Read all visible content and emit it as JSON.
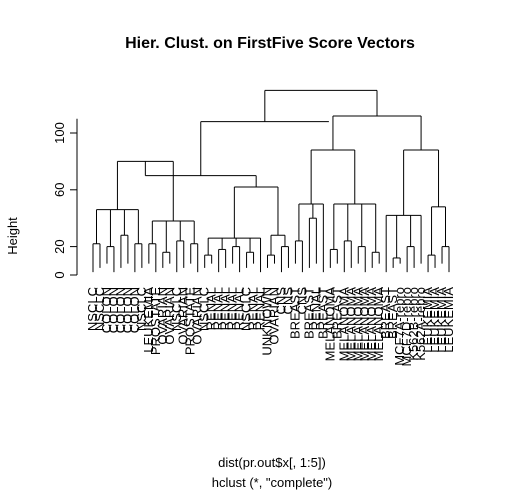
{
  "chart_data": {
    "type": "dendrogram",
    "title": "Hier. Clust. on FirstFive Score Vectors",
    "ylabel": "Height",
    "xlabel": "dist(pr.out$x[, 1:5])",
    "sublabel": "hclust (*, \"complete\")",
    "yticks": [
      0,
      20,
      60,
      100
    ],
    "ylim": [
      0,
      130
    ],
    "leaves": [
      "NSCLC",
      "NSCLC",
      "COLON",
      "COLON",
      "COLON",
      "COLON",
      "COLON",
      "NSCLC",
      "LEUKEMIA",
      "PROSTATE",
      "OVARIAN",
      "OVARIAN",
      "NSCLC",
      "OVARIAN",
      "PROSTATE",
      "OVARIAN",
      "NSCLC",
      "RENAL",
      "RENAL",
      "RENAL",
      "RENAL",
      "RENAL",
      "NSCLC",
      "RENAL",
      "RENAL",
      "UNKNOWN",
      "OVARIAN",
      "CNS",
      "CNS",
      "BREAST",
      "CNS",
      "BREAST",
      "RENAL",
      "BREAST",
      "MELANOMA",
      "BREAST",
      "MELANOMA",
      "MELANOMA",
      "MELANOMA",
      "MELANOMA",
      "MELANOMA",
      "MELANOMA",
      "BREAST",
      "BREAST",
      "MCF7A-repro",
      "MCF7D-repro",
      "K562B-repro",
      "K562A-repro",
      "LEUKEMIA",
      "LEUKEMIA",
      "LEUKEMIA",
      "LEUKEMIA"
    ],
    "merges": [
      {
        "left": 0,
        "right": 1,
        "height": 22
      },
      {
        "left": 2,
        "right": 3,
        "height": 20
      },
      {
        "left": 4,
        "right": 5,
        "height": 28
      },
      {
        "left": 6,
        "right": 7,
        "height": 22
      },
      {
        "left": 8,
        "right": 9,
        "height": 22
      },
      {
        "left": 10,
        "right": 11,
        "height": 16
      },
      {
        "left": 12,
        "right": 13,
        "height": 24
      },
      {
        "left": 14,
        "right": 15,
        "height": 22
      },
      {
        "left": 16,
        "right": 17,
        "height": 14
      },
      {
        "left": 18,
        "right": 19,
        "height": 18
      },
      {
        "left": 20,
        "right": 21,
        "height": 20
      },
      {
        "left": 22,
        "right": 23,
        "height": 16
      },
      {
        "left": 25,
        "right": 26,
        "height": 14
      },
      {
        "left": 27,
        "right": 28,
        "height": 20
      },
      {
        "left": 29,
        "right": 30,
        "height": 24
      },
      {
        "left": 31,
        "right": 32,
        "height": 40
      },
      {
        "left": 34,
        "right": 35,
        "height": 18
      },
      {
        "left": 36,
        "right": 37,
        "height": 24
      },
      {
        "left": 38,
        "right": 39,
        "height": 20
      },
      {
        "left": 40,
        "right": 41,
        "height": 16
      },
      {
        "left": 43,
        "right": 44,
        "height": 12
      },
      {
        "left": 45,
        "right": 46,
        "height": 20
      },
      {
        "left": 48,
        "right": 49,
        "height": 14
      },
      {
        "left": 50,
        "right": 51,
        "height": 20
      }
    ],
    "groups": [
      {
        "leaves": [
          0,
          1,
          2,
          3,
          4,
          5,
          6,
          7
        ],
        "height": 46
      },
      {
        "leaves": [
          8,
          9,
          10,
          11,
          12,
          13,
          14,
          15
        ],
        "height": 38
      },
      {
        "leaves": [
          16,
          17,
          18,
          19,
          20,
          21,
          22,
          23,
          24
        ],
        "height": 26
      },
      {
        "leaves": [
          25,
          26,
          27,
          28
        ],
        "height": 28
      },
      {
        "leaves": [
          29,
          30,
          31,
          32,
          33
        ],
        "height": 50
      },
      {
        "leaves": [
          34,
          35,
          36,
          37,
          38,
          39,
          40,
          41
        ],
        "height": 50
      },
      {
        "leaves": [
          42,
          43,
          44,
          45,
          46,
          47
        ],
        "height": 42
      },
      {
        "leaves": [
          48,
          49,
          50,
          51
        ],
        "height": 48
      }
    ],
    "upper": [
      {
        "groups": [
          0,
          1
        ],
        "height": 80
      },
      {
        "groups": [
          2,
          3
        ],
        "height": 62
      },
      {
        "groups": [
          4,
          5
        ],
        "height": 88
      },
      {
        "groups": [
          6,
          7
        ],
        "height": 88
      },
      {
        "upper": [
          0,
          1
        ],
        "height": 70
      },
      {
        "upper": [
          2,
          3
        ],
        "height": 112
      },
      {
        "upper": [
          4
        ],
        "groups": [],
        "height": 108
      },
      {
        "upper": [
          6,
          5
        ],
        "height": 130
      }
    ]
  }
}
